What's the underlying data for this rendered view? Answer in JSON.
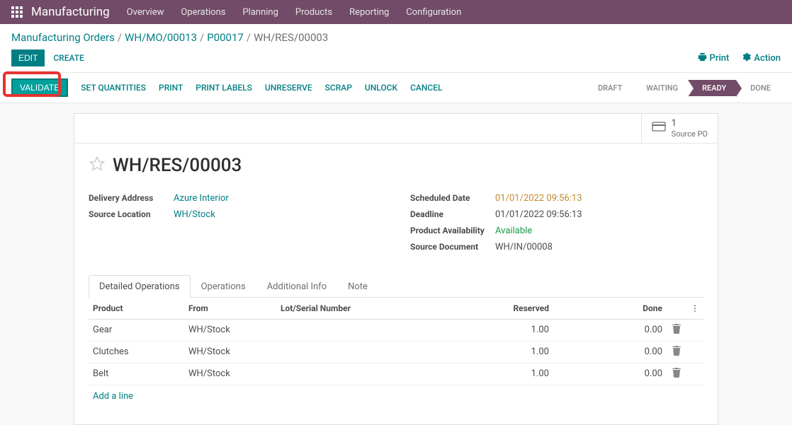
{
  "nav": {
    "app_title": "Manufacturing",
    "items": [
      "Overview",
      "Operations",
      "Planning",
      "Products",
      "Reporting",
      "Configuration"
    ]
  },
  "breadcrumb": {
    "parts": [
      "Manufacturing Orders",
      "WH/MO/00013",
      "P00017"
    ],
    "current": "WH/RES/00003"
  },
  "controls": {
    "edit": "Edit",
    "create": "Create",
    "print": "Print",
    "action": "Action"
  },
  "actions": {
    "validate": "Validate",
    "set_quantities": "Set Quantities",
    "print": "Print",
    "print_labels": "Print Labels",
    "unreserve": "Unreserve",
    "scrap": "Scrap",
    "unlock": "Unlock",
    "cancel": "Cancel"
  },
  "status": {
    "draft": "Draft",
    "waiting": "Waiting",
    "ready": "Ready",
    "done": "Done"
  },
  "smart_button": {
    "count": "1",
    "label": "Source PO"
  },
  "record": {
    "title": "WH/RES/00003",
    "left_fields": {
      "delivery_address_label": "Delivery Address",
      "delivery_address": "Azure Interior",
      "source_location_label": "Source Location",
      "source_location": "WH/Stock"
    },
    "right_fields": {
      "scheduled_date_label": "Scheduled Date",
      "scheduled_date": "01/01/2022 09:56:13",
      "deadline_label": "Deadline",
      "deadline": "01/01/2022 09:56:13",
      "product_availability_label": "Product Availability",
      "product_availability": "Available",
      "source_document_label": "Source Document",
      "source_document": "WH/IN/00008"
    }
  },
  "tabs": {
    "detailed_operations": "Detailed Operations",
    "operations": "Operations",
    "additional_info": "Additional Info",
    "note": "Note"
  },
  "table": {
    "headers": {
      "product": "Product",
      "from": "From",
      "lot": "Lot/Serial Number",
      "reserved": "Reserved",
      "done": "Done"
    },
    "rows": [
      {
        "product": "Gear",
        "from": "WH/Stock",
        "lot": "",
        "reserved": "1.00",
        "done": "0.00"
      },
      {
        "product": "Clutches",
        "from": "WH/Stock",
        "lot": "",
        "reserved": "1.00",
        "done": "0.00"
      },
      {
        "product": "Belt",
        "from": "WH/Stock",
        "lot": "",
        "reserved": "1.00",
        "done": "0.00"
      }
    ],
    "add_line": "Add a line"
  },
  "colors": {
    "brand": "#714b67",
    "teal": "#017e84",
    "teal_btn": "#00a09d",
    "highlight_red": "#e8322e",
    "orange": "#c08b30",
    "green": "#1a9b4b"
  }
}
